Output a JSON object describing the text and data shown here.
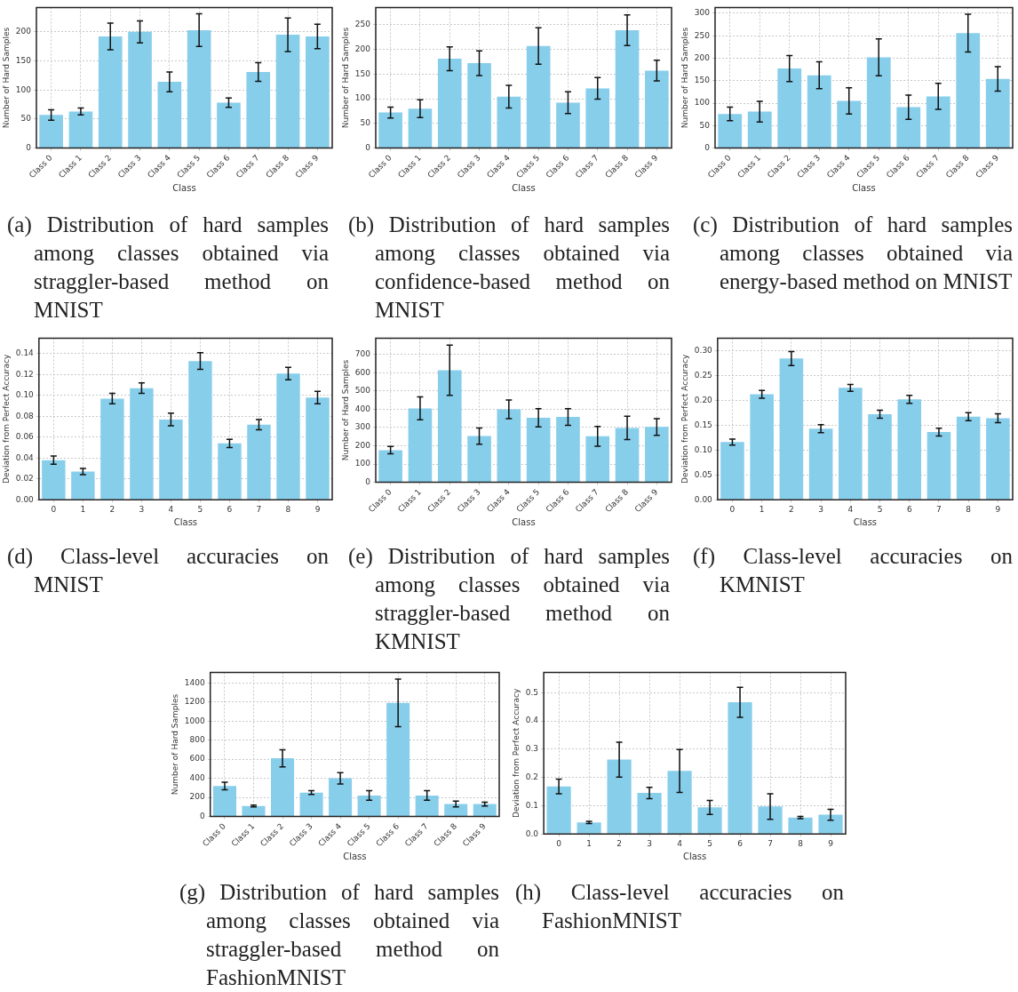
{
  "chart_data": [
    {
      "type": "bar",
      "xlabel": "Class",
      "ylabel": "Number of Hard Samples",
      "categories": [
        "Class 0",
        "Class 1",
        "Class 2",
        "Class 3",
        "Class 4",
        "Class 5",
        "Class 6",
        "Class 7",
        "Class 8",
        "Class 9"
      ],
      "values": [
        57,
        63,
        192,
        200,
        114,
        203,
        78,
        131,
        195,
        192
      ],
      "errors": [
        9,
        6,
        23,
        19,
        17,
        28,
        8,
        16,
        29,
        21
      ],
      "color": "#87ceeb",
      "ylim": [
        0,
        242
      ],
      "yticks": [
        0,
        50,
        100,
        150,
        200
      ],
      "grid": true,
      "annotations": [
        "(a) Distribution of hard samples among classes obtained via straggler-based method on MNIST"
      ]
    },
    {
      "type": "bar",
      "xlabel": "Class",
      "ylabel": "Number of Hard Samples",
      "categories": [
        "Class 0",
        "Class 1",
        "Class 2",
        "Class 3",
        "Class 4",
        "Class 5",
        "Class 6",
        "Class 7",
        "Class 8",
        "Class 9"
      ],
      "values": [
        72,
        80,
        181,
        172,
        104,
        207,
        92,
        121,
        239,
        157
      ],
      "errors": [
        11,
        18,
        24,
        25,
        23,
        37,
        22,
        22,
        31,
        21
      ],
      "color": "#87ceeb",
      "ylim": [
        0,
        285
      ],
      "yticks": [
        0,
        50,
        100,
        150,
        200,
        250
      ],
      "grid": true,
      "annotations": [
        "(b) Distribution of hard samples among classes obtained via confidence-based method on MNIST"
      ]
    },
    {
      "type": "bar",
      "xlabel": "Class",
      "ylabel": "Number of Hard Samples",
      "categories": [
        "Class 0",
        "Class 1",
        "Class 2",
        "Class 3",
        "Class 4",
        "Class 5",
        "Class 6",
        "Class 7",
        "Class 8",
        "Class 9"
      ],
      "values": [
        76,
        81,
        177,
        162,
        105,
        202,
        91,
        115,
        256,
        154
      ],
      "errors": [
        15,
        23,
        29,
        30,
        29,
        41,
        27,
        29,
        42,
        27
      ],
      "color": "#87ceeb",
      "ylim": [
        0,
        313
      ],
      "yticks": [
        0,
        50,
        100,
        150,
        200,
        250,
        300
      ],
      "grid": true,
      "annotations": [
        "(c) Distribution of hard samples among classes obtained via energy-based method on MNIST"
      ]
    },
    {
      "type": "bar",
      "xlabel": "Class",
      "ylabel": "Deviation from Perfect Accuracy",
      "categories": [
        "0",
        "1",
        "2",
        "3",
        "4",
        "5",
        "6",
        "7",
        "8",
        "9"
      ],
      "values": [
        0.038,
        0.027,
        0.097,
        0.107,
        0.077,
        0.133,
        0.054,
        0.072,
        0.121,
        0.098
      ],
      "errors": [
        0.004,
        0.003,
        0.005,
        0.005,
        0.006,
        0.008,
        0.004,
        0.005,
        0.006,
        0.006
      ],
      "color": "#87ceeb",
      "ylim": [
        0,
        0.155
      ],
      "yticks": [
        {
          "value": 0,
          "label": "0.00"
        },
        {
          "value": 0.02,
          "label": "0.02"
        },
        {
          "value": 0.04,
          "label": "0.04"
        },
        {
          "value": 0.06,
          "label": "0.06"
        },
        {
          "value": 0.08,
          "label": "0.08"
        },
        {
          "value": 0.1,
          "label": "0.10"
        },
        {
          "value": 0.12,
          "label": "0.12"
        },
        {
          "value": 0.14,
          "label": "0.14"
        }
      ],
      "grid": true,
      "annotations": [
        "(d) Class-level accuracies on MNIST"
      ]
    },
    {
      "type": "bar",
      "xlabel": "Class",
      "ylabel": "Number of Hard Samples",
      "categories": [
        "Class 0",
        "Class 1",
        "Class 2",
        "Class 3",
        "Class 4",
        "Class 5",
        "Class 6",
        "Class 7",
        "Class 8",
        "Class 9"
      ],
      "values": [
        176,
        405,
        614,
        253,
        400,
        354,
        358,
        252,
        298,
        303
      ],
      "errors": [
        20,
        63,
        138,
        44,
        51,
        50,
        46,
        54,
        64,
        46
      ],
      "color": "#87ceeb",
      "ylim": [
        0,
        790
      ],
      "yticks": [
        0,
        100,
        200,
        300,
        400,
        500,
        600,
        700
      ],
      "grid": true,
      "annotations": [
        "(e) Distribution of hard samples among classes obtained via straggler-based method on KMNIST"
      ]
    },
    {
      "type": "bar",
      "xlabel": "Class",
      "ylabel": "Deviation from Perfect Accuracy",
      "categories": [
        "0",
        "1",
        "2",
        "3",
        "4",
        "5",
        "6",
        "7",
        "8",
        "9"
      ],
      "values": [
        0.116,
        0.212,
        0.284,
        0.143,
        0.225,
        0.172,
        0.202,
        0.136,
        0.167,
        0.164
      ],
      "errors": [
        0.006,
        0.008,
        0.014,
        0.008,
        0.007,
        0.008,
        0.008,
        0.008,
        0.008,
        0.009
      ],
      "color": "#87ceeb",
      "ylim": [
        0,
        0.325
      ],
      "yticks": [
        {
          "value": 0,
          "label": "0.00"
        },
        {
          "value": 0.05,
          "label": "0.05"
        },
        {
          "value": 0.1,
          "label": "0.10"
        },
        {
          "value": 0.15,
          "label": "0.15"
        },
        {
          "value": 0.2,
          "label": "0.20"
        },
        {
          "value": 0.25,
          "label": "0.25"
        },
        {
          "value": 0.3,
          "label": "0.30"
        }
      ],
      "grid": true,
      "annotations": [
        "(f) Class-level accuracies on KMNIST"
      ]
    },
    {
      "type": "bar",
      "xlabel": "Class",
      "ylabel": "Number of Hard Samples",
      "categories": [
        "Class 0",
        "Class 1",
        "Class 2",
        "Class 3",
        "Class 4",
        "Class 5",
        "Class 6",
        "Class 7",
        "Class 8",
        "Class 9"
      ],
      "values": [
        320,
        110,
        610,
        250,
        400,
        220,
        1190,
        220,
        130,
        130
      ],
      "errors": [
        40,
        10,
        90,
        20,
        60,
        50,
        250,
        50,
        30,
        20
      ],
      "color": "#87ceeb",
      "ylim": [
        0,
        1510
      ],
      "yticks": [
        0,
        200,
        400,
        600,
        800,
        1000,
        1200,
        1400
      ],
      "grid": true,
      "annotations": [
        "(g) Distribution of hard samples among classes obtained via straggler-based method on FashionMNIST"
      ]
    },
    {
      "type": "bar",
      "xlabel": "Class",
      "ylabel": "Deviation from Perfect Accuracy",
      "categories": [
        "0",
        "1",
        "2",
        "3",
        "4",
        "5",
        "6",
        "7",
        "8",
        "9"
      ],
      "values": [
        0.168,
        0.041,
        0.263,
        0.145,
        0.223,
        0.094,
        0.466,
        0.097,
        0.058,
        0.068
      ],
      "errors": [
        0.026,
        0.004,
        0.062,
        0.02,
        0.076,
        0.025,
        0.053,
        0.045,
        0.004,
        0.019
      ],
      "color": "#87ceeb",
      "ylim": [
        0,
        0.572
      ],
      "yticks": [
        {
          "value": 0,
          "label": "0.0"
        },
        {
          "value": 0.1,
          "label": "0.1"
        },
        {
          "value": 0.2,
          "label": "0.2"
        },
        {
          "value": 0.3,
          "label": "0.3"
        },
        {
          "value": 0.4,
          "label": "0.4"
        },
        {
          "value": 0.5,
          "label": "0.5"
        }
      ],
      "grid": true,
      "annotations": [
        "(h) Class-level accuracies on FashionMNIST"
      ]
    }
  ]
}
